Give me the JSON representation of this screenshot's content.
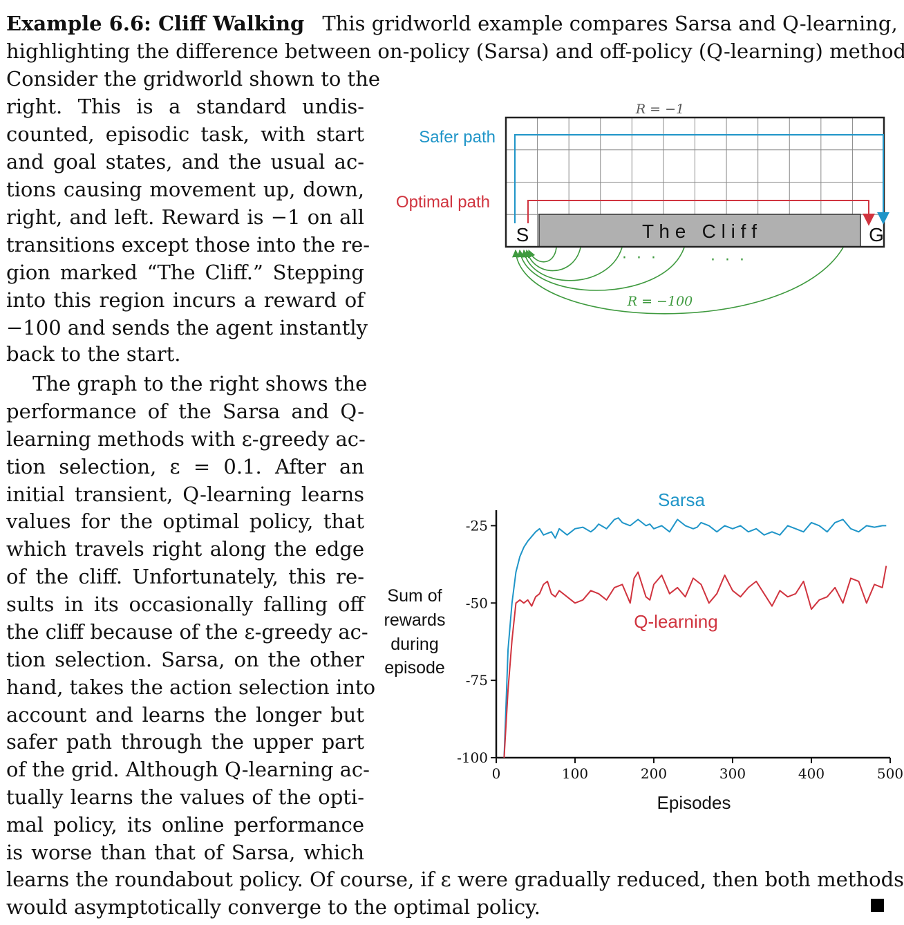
{
  "text": {
    "heading": "Example 6.6: Cliff Walking",
    "l1": "This gridworld example compares Sarsa and Q-learning,",
    "l2": "highlighting the difference between on-policy (Sarsa) and off-policy (Q-learning) methods.",
    "l3": "Consider the gridworld shown to the",
    "l4": "right.   This is a standard undis-",
    "l5": "counted, episodic task, with start",
    "l6": "and goal states, and the usual ac-",
    "l7": "tions causing movement up, down,",
    "l8": "right, and left. Reward is −1 on all",
    "l9": "transitions except those into the re-",
    "l10": "gion marked “The Cliff.” Stepping",
    "l11": "into this region incurs a reward of",
    "l12": "−100 and sends the agent instantly",
    "l13": "back to the start.",
    "l14": "The graph to the right shows the",
    "l15": "performance of the Sarsa and Q-",
    "l16": "learning methods with ε-greedy ac-",
    "l17": "tion selection, ε = 0.1.  After an",
    "l18": "initial transient, Q-learning learns",
    "l19": "values for the optimal policy, that",
    "l20": "which travels right along the edge",
    "l21": "of the cliff. Unfortunately, this re-",
    "l22": "sults in its occasionally falling off",
    "l23": "the cliff because of the ε-greedy ac-",
    "l24": "tion selection. Sarsa, on the other",
    "l25": "hand, takes the action selection into",
    "l26": "account and learns the longer but",
    "l27": "safer path through the upper part",
    "l28": "of the grid. Although Q-learning ac-",
    "l29": "tually learns the values of the opti-",
    "l30": "mal policy, its online performance",
    "l31": "is worse than that of Sarsa, which",
    "l32": "learns the roundabout policy. Of course, if ε were gradually reduced, then both methods",
    "l33": "would asymptotically converge to the optimal policy."
  },
  "gridworld": {
    "reward_top": "R = −1",
    "reward_cliff": "R = −100",
    "safer_label": "Safer path",
    "optimal_label": "Optimal path",
    "start": "S",
    "goal": "G",
    "cliff_label": "T h e   C l i f f",
    "dots": "·  ·  ·",
    "colors": {
      "safer": "#1f95c8",
      "optimal": "#d0343f",
      "cliff_arrows": "#3f9a3f",
      "cliff_fill": "#b0b0b0"
    }
  },
  "chart_data": {
    "type": "line",
    "ylabel": "Sum of rewards during episode",
    "ylabel_lines": [
      "Sum of",
      "rewards",
      "during",
      "episode"
    ],
    "xlabel": "Episodes",
    "xlim": [
      0,
      500
    ],
    "ylim": [
      -100,
      -20
    ],
    "x_ticks": [
      0,
      100,
      200,
      300,
      400,
      500
    ],
    "y_ticks": [
      -25,
      -50,
      -75,
      -100
    ],
    "x_tick_labels": [
      "0",
      "100",
      "200",
      "300",
      "400",
      "500"
    ],
    "y_tick_labels": [
      "-25",
      "-50",
      "-75",
      "-100"
    ],
    "series": [
      {
        "name": "Sarsa",
        "color": "#1f95c8",
        "x": [
          10,
          15,
          20,
          25,
          30,
          35,
          40,
          50,
          55,
          60,
          70,
          75,
          80,
          90,
          95,
          100,
          110,
          120,
          125,
          130,
          140,
          150,
          155,
          160,
          170,
          180,
          190,
          195,
          200,
          210,
          220,
          230,
          240,
          250,
          255,
          260,
          270,
          280,
          290,
          300,
          310,
          320,
          330,
          340,
          350,
          360,
          370,
          380,
          390,
          400,
          410,
          420,
          430,
          440,
          450,
          460,
          470,
          480,
          490,
          495
        ],
        "y": [
          -100,
          -65,
          -50,
          -40,
          -35,
          -32,
          -30,
          -27,
          -26,
          -28,
          -27,
          -29,
          -26,
          -28,
          -27,
          -26,
          -25.5,
          -27,
          -26,
          -24.5,
          -26,
          -23,
          -22.5,
          -24,
          -25,
          -23,
          -25,
          -24.5,
          -26,
          -25,
          -27,
          -23,
          -25,
          -26,
          -25.5,
          -24,
          -25,
          -27,
          -25,
          -26,
          -25,
          -27,
          -26,
          -28,
          -27,
          -28,
          -25,
          -26,
          -27,
          -24,
          -25,
          -27,
          -24,
          -23,
          -26,
          -27,
          -25,
          -25.5,
          -25,
          -25
        ]
      },
      {
        "name": "Q-learning",
        "color": "#d0343f",
        "x": [
          10,
          15,
          20,
          25,
          30,
          35,
          40,
          45,
          50,
          55,
          60,
          65,
          70,
          75,
          80,
          90,
          100,
          110,
          120,
          130,
          140,
          150,
          160,
          170,
          175,
          180,
          190,
          195,
          200,
          210,
          220,
          230,
          240,
          250,
          260,
          270,
          280,
          290,
          300,
          310,
          320,
          330,
          340,
          350,
          360,
          370,
          380,
          390,
          400,
          410,
          420,
          430,
          440,
          450,
          460,
          470,
          480,
          490,
          495
        ],
        "y": [
          -100,
          -78,
          -62,
          -50,
          -49,
          -50,
          -49,
          -51,
          -48,
          -47,
          -44,
          -43,
          -47,
          -48,
          -46,
          -48,
          -50,
          -49,
          -46,
          -47,
          -49,
          -45,
          -44,
          -50,
          -42,
          -40,
          -48,
          -49,
          -44,
          -41,
          -47,
          -45,
          -48,
          -42,
          -44,
          -50,
          -47,
          -41,
          -46,
          -48,
          -45,
          -43,
          -47,
          -51,
          -46,
          -48,
          -47,
          -43,
          -52,
          -49,
          -48,
          -45,
          -50,
          -42,
          -43,
          -50,
          -44,
          -45,
          -38
        ]
      }
    ]
  }
}
